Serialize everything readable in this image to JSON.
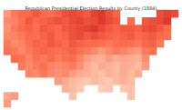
{
  "chart_data": {
    "type": "heatmap",
    "title": "Republican Presidential Election Results by County (1884)",
    "color_range": [
      0,
      100
    ],
    "tick_labels": false,
    "grid": false,
    "cells": [
      [
        35,
        45,
        50,
        50,
        55,
        50,
        48,
        52,
        58,
        60,
        58,
        55,
        62,
        65,
        58,
        52,
        null,
        null,
        null,
        null,
        null,
        58,
        62,
        60
      ],
      [
        40,
        42,
        48,
        55,
        50,
        52,
        55,
        58,
        55,
        60,
        62,
        58,
        60,
        65,
        60,
        55,
        null,
        50,
        null,
        55,
        58,
        60,
        65,
        null
      ],
      [
        38,
        45,
        50,
        52,
        48,
        55,
        52,
        50,
        55,
        58,
        60,
        62,
        65,
        60,
        55,
        52,
        55,
        55,
        52,
        58,
        60,
        55,
        50,
        null
      ],
      [
        40,
        42,
        45,
        50,
        48,
        52,
        55,
        50,
        52,
        58,
        60,
        55,
        58,
        55,
        52,
        50,
        52,
        55,
        50,
        52,
        55,
        50,
        48,
        null
      ],
      [
        45,
        40,
        42,
        48,
        52,
        50,
        55,
        52,
        50,
        55,
        52,
        50,
        50,
        48,
        45,
        48,
        50,
        48,
        45,
        50,
        52,
        45,
        null,
        null
      ],
      [
        48,
        45,
        40,
        45,
        50,
        52,
        50,
        48,
        50,
        52,
        48,
        45,
        40,
        35,
        40,
        45,
        42,
        38,
        35,
        45,
        48,
        null,
        null,
        null
      ],
      [
        null,
        50,
        48,
        42,
        48,
        45,
        50,
        45,
        48,
        50,
        42,
        35,
        30,
        28,
        35,
        30,
        32,
        30,
        28,
        40,
        null,
        null,
        null,
        null
      ],
      [
        null,
        null,
        45,
        40,
        45,
        48,
        42,
        40,
        42,
        45,
        38,
        30,
        25,
        30,
        28,
        25,
        30,
        28,
        25,
        35,
        null,
        null,
        null,
        null
      ],
      [
        null,
        null,
        null,
        42,
        40,
        45,
        40,
        38,
        40,
        35,
        30,
        28,
        25,
        22,
        28,
        25,
        30,
        25,
        30,
        null,
        null,
        null,
        null,
        null
      ],
      [
        null,
        null,
        null,
        null,
        null,
        null,
        null,
        35,
        30,
        25,
        22,
        20,
        25,
        22,
        20,
        25,
        28,
        25,
        null,
        null,
        null,
        null,
        null,
        null
      ],
      [
        null,
        null,
        null,
        null,
        null,
        null,
        null,
        null,
        28,
        25,
        20,
        null,
        null,
        18,
        20,
        null,
        20,
        22,
        null,
        null,
        null,
        null,
        null,
        null
      ],
      [
        30,
        35,
        null,
        null,
        null,
        null,
        null,
        null,
        null,
        22,
        null,
        null,
        null,
        null,
        null,
        null,
        null,
        22,
        null,
        null,
        null,
        null,
        null,
        null
      ],
      [
        35,
        null,
        null,
        null,
        null,
        null,
        null,
        null,
        null,
        null,
        null,
        null,
        null,
        null,
        null,
        null,
        null,
        null,
        null,
        null,
        null,
        null,
        null,
        null
      ]
    ]
  }
}
